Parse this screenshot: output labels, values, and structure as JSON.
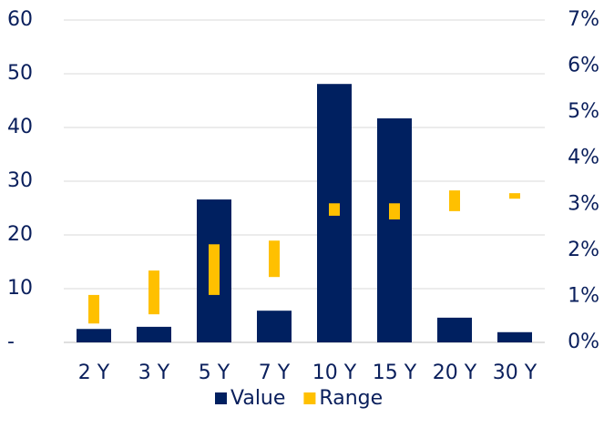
{
  "chart_data": {
    "type": "bar",
    "categories": [
      "2 Y",
      "3 Y",
      "5 Y",
      "7 Y",
      "10 Y",
      "15 Y",
      "20 Y",
      "30 Y"
    ],
    "series": [
      {
        "name": "Value",
        "color": "#002060",
        "values": [
          2.5,
          2.9,
          26.6,
          5.9,
          48.1,
          41.7,
          4.6,
          1.9
        ]
      },
      {
        "name": "Range",
        "color": "#ffc000",
        "axis": "y2",
        "low": [
          0.41,
          0.61,
          1.03,
          1.42,
          2.75,
          2.67,
          2.85,
          3.12
        ],
        "high": [
          1.03,
          1.56,
          2.13,
          2.21,
          3.02,
          3.02,
          3.3,
          3.24
        ]
      }
    ],
    "ylim": [
      0,
      60
    ],
    "yticks": [
      {
        "value": 0,
        "label": "-"
      },
      10,
      20,
      30,
      40,
      50,
      60
    ],
    "y2lim": [
      0,
      7
    ],
    "y2ticks": [
      {
        "value": 0,
        "label": "0%"
      },
      {
        "value": 1,
        "label": "1%"
      },
      {
        "value": 2,
        "label": "2%"
      },
      {
        "value": 3,
        "label": "3%"
      },
      {
        "value": 4,
        "label": "4%"
      },
      {
        "value": 5,
        "label": "5%"
      },
      {
        "value": 6,
        "label": "6%"
      },
      {
        "value": 7,
        "label": "7%"
      }
    ],
    "grid": true,
    "legend": "bottom"
  }
}
